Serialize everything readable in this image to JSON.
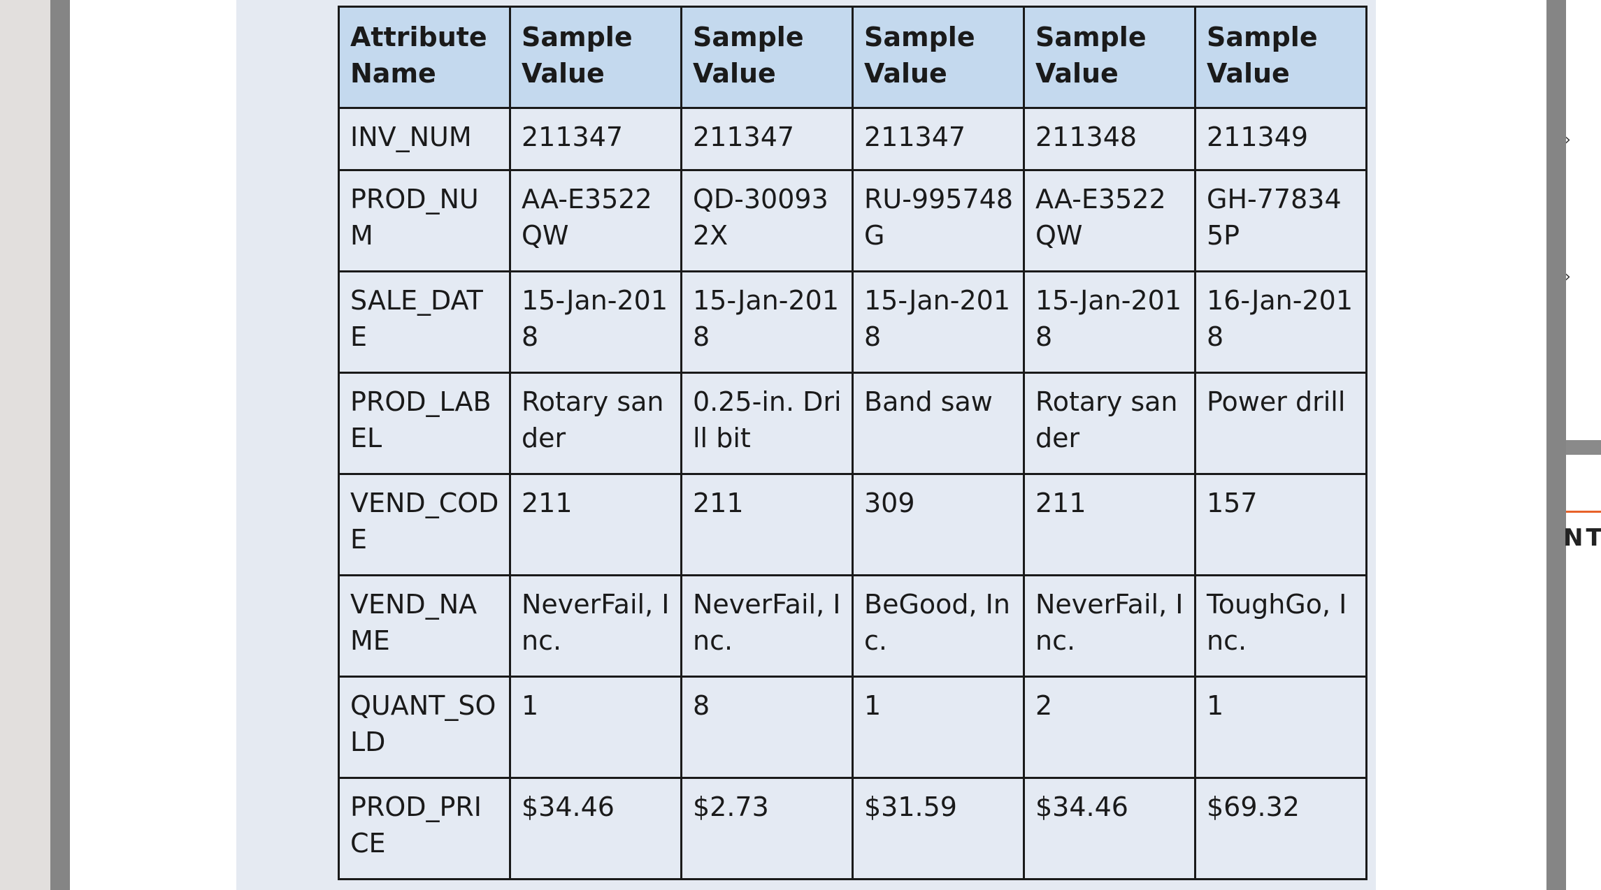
{
  "table": {
    "headers": [
      "Attribute Name",
      "Sample Value",
      "Sample Value",
      "Sample Value",
      "Sample Value",
      "Sample Value"
    ],
    "rows": [
      [
        "INV_NUM",
        "211347",
        "211347",
        "211347",
        "211348",
        "211349"
      ],
      [
        "PROD_NUM",
        "AA-E3522QW",
        "QD-300932X",
        "RU-995748G",
        "AA-E3522QW",
        "GH-778345P"
      ],
      [
        "SALE_DATE",
        "15-Jan-2018",
        "15-Jan-2018",
        "15-Jan-2018",
        "15-Jan-2018",
        "16-Jan-2018"
      ],
      [
        "PROD_LABEL",
        "Rotary sander",
        "0.25-in. Drill bit",
        "Band saw",
        "Rotary sander",
        "Power drill"
      ],
      [
        "VEND_CODE",
        "211",
        "211",
        "309",
        "211",
        "157"
      ],
      [
        "VEND_NAME",
        "NeverFail, Inc.",
        "NeverFail, Inc.",
        "BeGood, Inc.",
        "NeverFail, Inc.",
        "ToughGo, Inc."
      ],
      [
        "QUANT_SOLD",
        "1",
        "8",
        "1",
        "2",
        "1"
      ],
      [
        "PROD_PRICE",
        "$34.46",
        "$2.73",
        "$31.59",
        "$34.46",
        "$69.32"
      ]
    ]
  },
  "edge": {
    "glyph_1": "›",
    "glyph_2": "›",
    "partial_text": "NT"
  }
}
